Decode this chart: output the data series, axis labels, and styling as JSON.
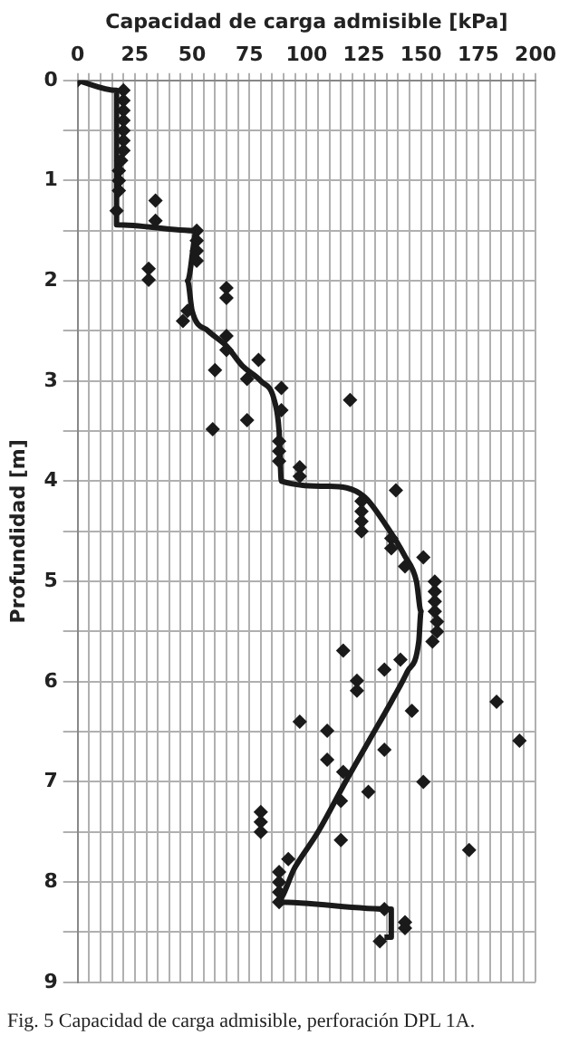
{
  "chart_data": {
    "type": "scatter",
    "xlabel": "Capacidad de carga admisible [kPa]",
    "ylabel": "Profundidad [m]",
    "xlim": [
      0,
      200
    ],
    "ylim": [
      9,
      0
    ],
    "xticks": [
      0,
      {
        "value": 5,
        "label": null
      },
      {
        "value": 10,
        "label": null
      },
      {
        "value": 15,
        "label": null
      },
      {
        "value": 20,
        "label": null
      },
      25,
      {
        "value": 30,
        "label": null
      },
      {
        "value": 35,
        "label": null
      },
      {
        "value": 40,
        "label": null
      },
      {
        "value": 45,
        "label": null
      },
      50,
      {
        "value": 55,
        "label": null
      },
      {
        "value": 60,
        "label": null
      },
      {
        "value": 65,
        "label": null
      },
      {
        "value": 70,
        "label": null
      },
      75,
      {
        "value": 80,
        "label": null
      },
      {
        "value": 85,
        "label": null
      },
      {
        "value": 90,
        "label": null
      },
      {
        "value": 95,
        "label": null
      },
      100,
      {
        "value": 105,
        "label": null
      },
      {
        "value": 110,
        "label": null
      },
      {
        "value": 115,
        "label": null
      },
      {
        "value": 120,
        "label": null
      },
      125,
      {
        "value": 130,
        "label": null
      },
      {
        "value": 135,
        "label": null
      },
      {
        "value": 140,
        "label": null
      },
      {
        "value": 145,
        "label": null
      },
      150,
      {
        "value": 155,
        "label": null
      },
      {
        "value": 160,
        "label": null
      },
      {
        "value": 165,
        "label": null
      },
      {
        "value": 170,
        "label": null
      },
      175,
      {
        "value": 180,
        "label": null
      },
      {
        "value": 185,
        "label": null
      },
      {
        "value": 190,
        "label": null
      },
      {
        "value": 195,
        "label": null
      },
      200
    ],
    "yticks": [
      0,
      {
        "value": 0.5,
        "label": null
      },
      1,
      {
        "value": 1.5,
        "label": null
      },
      2,
      {
        "value": 2.5,
        "label": null
      },
      3,
      {
        "value": 3.5,
        "label": null
      },
      4,
      {
        "value": 4.5,
        "label": null
      },
      5,
      {
        "value": 5.5,
        "label": null
      },
      6,
      {
        "value": 6.5,
        "label": null
      },
      7,
      {
        "value": 7.5,
        "label": null
      },
      8,
      {
        "value": 8.5,
        "label": null
      },
      9
    ],
    "grid": true,
    "marker": "diamond",
    "series": [
      {
        "color": "#1a1a1a",
        "x": [
          0,
          20,
          20,
          20,
          20,
          20,
          20,
          20,
          19,
          18,
          18,
          18,
          17,
          34,
          34,
          31,
          31,
          52,
          52,
          52,
          52,
          65,
          65,
          48,
          46,
          65,
          65,
          79,
          60,
          74,
          89,
          89,
          119,
          74,
          59,
          88,
          88,
          88,
          97,
          97,
          139,
          124,
          124,
          124,
          124,
          137,
          137,
          143,
          151,
          156,
          156,
          156,
          156,
          157,
          157,
          155,
          116,
          134,
          141,
          122,
          122,
          183,
          193,
          146,
          97,
          109,
          134,
          109,
          116,
          151,
          127,
          115,
          80,
          80,
          80,
          115,
          171,
          92,
          88,
          88,
          88,
          88,
          134,
          143,
          143,
          132
        ],
        "values": [
          0,
          0.1,
          0.2,
          0.3,
          0.4,
          0.5,
          0.6,
          0.7,
          0.8,
          0.9,
          1.0,
          1.1,
          1.3,
          1.2,
          1.4,
          1.88,
          1.99,
          1.5,
          1.6,
          1.7,
          1.8,
          2.07,
          2.17,
          2.3,
          2.4,
          2.55,
          2.69,
          2.79,
          2.89,
          2.98,
          3.07,
          3.29,
          3.19,
          3.39,
          3.48,
          3.6,
          3.7,
          3.8,
          3.86,
          3.95,
          4.09,
          4.2,
          4.3,
          4.4,
          4.5,
          4.57,
          4.67,
          4.85,
          4.76,
          5.0,
          5.1,
          5.2,
          5.3,
          5.4,
          5.5,
          5.6,
          5.69,
          5.88,
          5.78,
          5.99,
          6.09,
          6.2,
          6.59,
          6.29,
          6.4,
          6.49,
          6.68,
          6.78,
          6.9,
          7.0,
          7.1,
          7.19,
          7.3,
          7.4,
          7.5,
          7.58,
          7.68,
          7.77,
          7.9,
          8.0,
          8.1,
          8.2,
          8.27,
          8.4,
          8.46,
          8.59
        ]
      },
      {
        "type": "line",
        "marker": "none",
        "color": "#1a1a1a",
        "x": [
          0,
          17,
          17,
          52,
          48,
          50,
          57,
          65,
          72,
          80,
          86,
          88,
          89,
          110,
          125,
          135,
          143,
          148,
          150,
          149,
          144,
          137,
          127,
          117,
          105,
          95,
          87,
          137,
          137,
          134
        ],
        "values": [
          0,
          0.1,
          1.44,
          1.5,
          2.0,
          2.3,
          2.5,
          2.65,
          2.85,
          3.0,
          3.2,
          3.5,
          4.0,
          4.05,
          4.15,
          4.45,
          4.75,
          5.0,
          5.3,
          5.6,
          5.9,
          6.2,
          6.6,
          7.0,
          7.5,
          7.85,
          8.2,
          8.27,
          8.55,
          8.55
        ]
      }
    ],
    "annotations": [
      "Fig. 5 Capacidad de carga admisible, perforación DPL 1A."
    ]
  }
}
